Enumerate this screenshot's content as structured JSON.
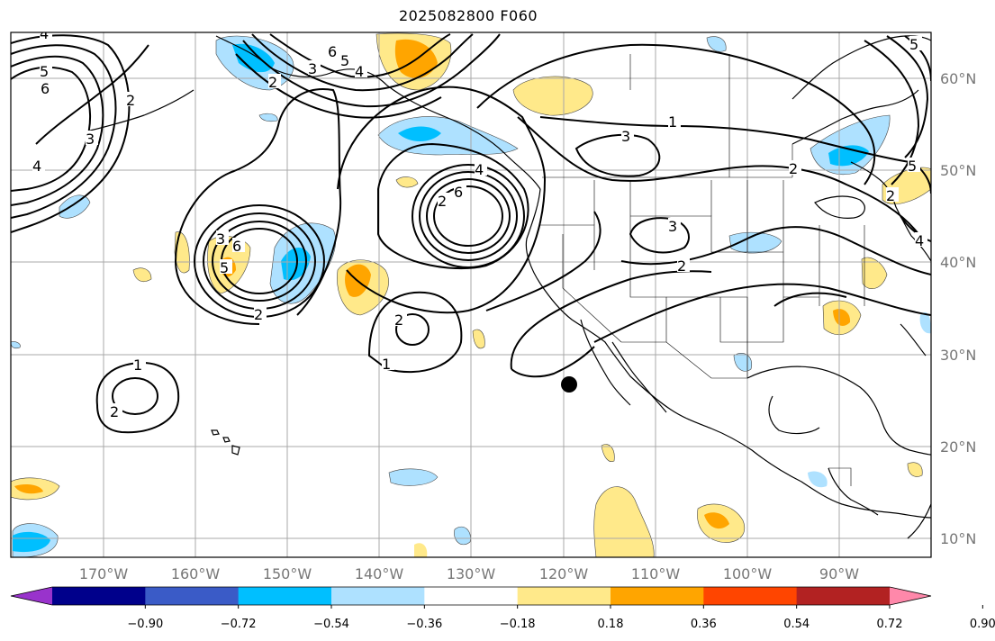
{
  "title": "2025082800 F060",
  "map": {
    "lon_labels": [
      "170°W",
      "160°W",
      "150°W",
      "140°W",
      "130°W",
      "120°W",
      "110°W",
      "100°W",
      "90°W"
    ],
    "lat_labels": [
      "60°N",
      "50°N",
      "40°N",
      "30°N",
      "20°N",
      "10°N"
    ],
    "contour_labels": [
      "6",
      "5",
      "4",
      "3",
      "2",
      "1"
    ],
    "grid": true,
    "marker": "black dot (storm center)"
  },
  "colorbar": {
    "ticks": [
      "−0.90",
      "−0.72",
      "−0.54",
      "−0.36",
      "−0.18",
      "0.18",
      "0.36",
      "0.54",
      "0.72",
      "0.90"
    ],
    "colors": [
      "#9933cc",
      "#00008b",
      "#3a5bc7",
      "#00bfff",
      "#aee1ff",
      "#ffffff",
      "#ffe98a",
      "#ffa500",
      "#ff4500",
      "#b22222",
      "#ff88aa"
    ],
    "extend": "both"
  }
}
